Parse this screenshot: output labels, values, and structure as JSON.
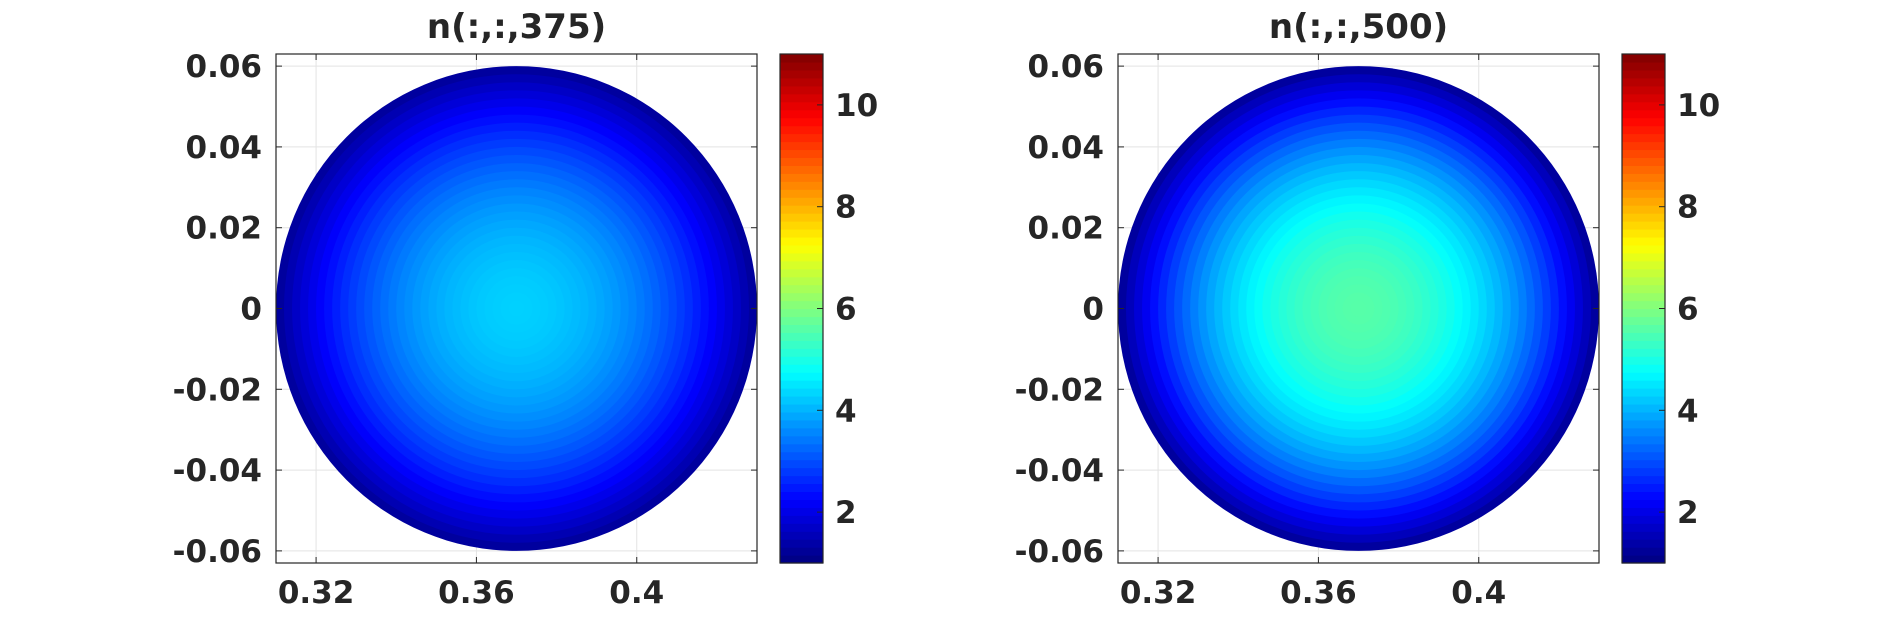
{
  "chart_data": [
    {
      "type": "heatmap",
      "title": "n(:,:,375)",
      "xlabel": "",
      "ylabel": "",
      "xlim": [
        0.31,
        0.43
      ],
      "ylim": [
        -0.063,
        0.063
      ],
      "xticks": [
        0.32,
        0.36,
        0.4
      ],
      "xtick_labels": [
        "0.32",
        "0.36",
        "0.4"
      ],
      "yticks": [
        0.06,
        0.04,
        0.02,
        0,
        -0.02,
        -0.04,
        -0.06
      ],
      "ytick_labels": [
        "0.06",
        "0.04",
        "0.02",
        "0",
        "-0.02",
        "-0.04",
        "-0.06"
      ],
      "grid": true,
      "colormap": "jet",
      "colorbar": {
        "clim": [
          1,
          11
        ],
        "ticks": [
          2,
          4,
          6,
          8,
          10
        ],
        "tick_labels": [
          "2",
          "4",
          "6",
          "8",
          "10"
        ]
      },
      "field": {
        "shape": "disk",
        "center": [
          0.37,
          0
        ],
        "radius": 0.06,
        "center_value": 4.3,
        "edge_value": 1.3,
        "levels": 30
      }
    },
    {
      "type": "heatmap",
      "title": "n(:,:,500)",
      "xlabel": "",
      "ylabel": "",
      "xlim": [
        0.31,
        0.43
      ],
      "ylim": [
        -0.063,
        0.063
      ],
      "xticks": [
        0.32,
        0.36,
        0.4
      ],
      "xtick_labels": [
        "0.32",
        "0.36",
        "0.4"
      ],
      "yticks": [
        0.06,
        0.04,
        0.02,
        0,
        -0.02,
        -0.04,
        -0.06
      ],
      "ytick_labels": [
        "0.06",
        "0.04",
        "0.02",
        "0",
        "-0.02",
        "-0.04",
        "-0.06"
      ],
      "grid": true,
      "colormap": "jet",
      "colorbar": {
        "clim": [
          1,
          11
        ],
        "ticks": [
          2,
          4,
          6,
          8,
          10
        ],
        "tick_labels": [
          "2",
          "4",
          "6",
          "8",
          "10"
        ]
      },
      "field": {
        "shape": "disk",
        "center": [
          0.37,
          0
        ],
        "radius": 0.06,
        "center_value": 5.6,
        "edge_value": 1.3,
        "levels": 30
      }
    }
  ]
}
